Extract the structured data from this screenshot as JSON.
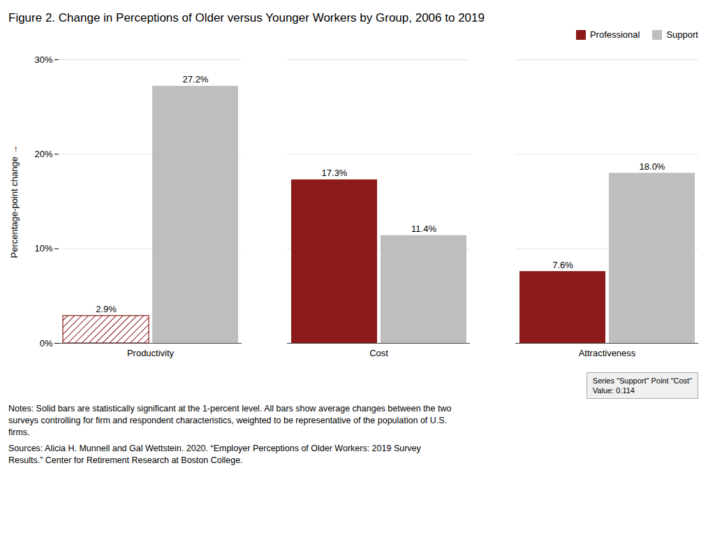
{
  "chart_data": {
    "type": "bar",
    "title": "Figure 2. Change in Perceptions of Older versus Younger Workers by Group, 2006 to 2019",
    "categories": [
      "Productivity",
      "Cost",
      "Attractiveness"
    ],
    "series": [
      {
        "name": "Professional",
        "color": "#8B1A1A",
        "values": [
          0.029,
          0.173,
          0.076
        ],
        "value_labels": [
          "2.9%",
          "17.3%",
          "7.6%"
        ],
        "significant": [
          false,
          true,
          true
        ]
      },
      {
        "name": "Support",
        "color": "#BEBEBE",
        "values": [
          0.272,
          0.114,
          0.18
        ],
        "value_labels": [
          "27.2%",
          "11.4%",
          "18.0%"
        ]
      }
    ],
    "ylabel": "Percentage-point change",
    "ylim": [
      0,
      0.3
    ],
    "yticks": [
      {
        "value": 0,
        "label": "0%"
      },
      {
        "value": 0.1,
        "label": "10%"
      },
      {
        "value": 0.2,
        "label": "20%"
      },
      {
        "value": 0.3,
        "label": "30%"
      }
    ],
    "grid": true,
    "legend": "upper right",
    "data_labels": true,
    "annotations": [
      [
        "Series \"Support\" Point \"Cost\"",
        "Value: 0.114"
      ],
      [
        "Notes: Solid bars are statistically significant at the 1-percent level.  All bars show average changes between the two",
        "surveys controlling for firm and respondent characteristics, weighted to be representative of the population of U.S.",
        "firms."
      ],
      [
        "Sources: Alicia H. Munnell and Gal Wettstein. 2020. “Employer Perceptions of Older Workers: 2019 Survey",
        "Results.” Center for Retirement Research at Boston College."
      ]
    ]
  }
}
